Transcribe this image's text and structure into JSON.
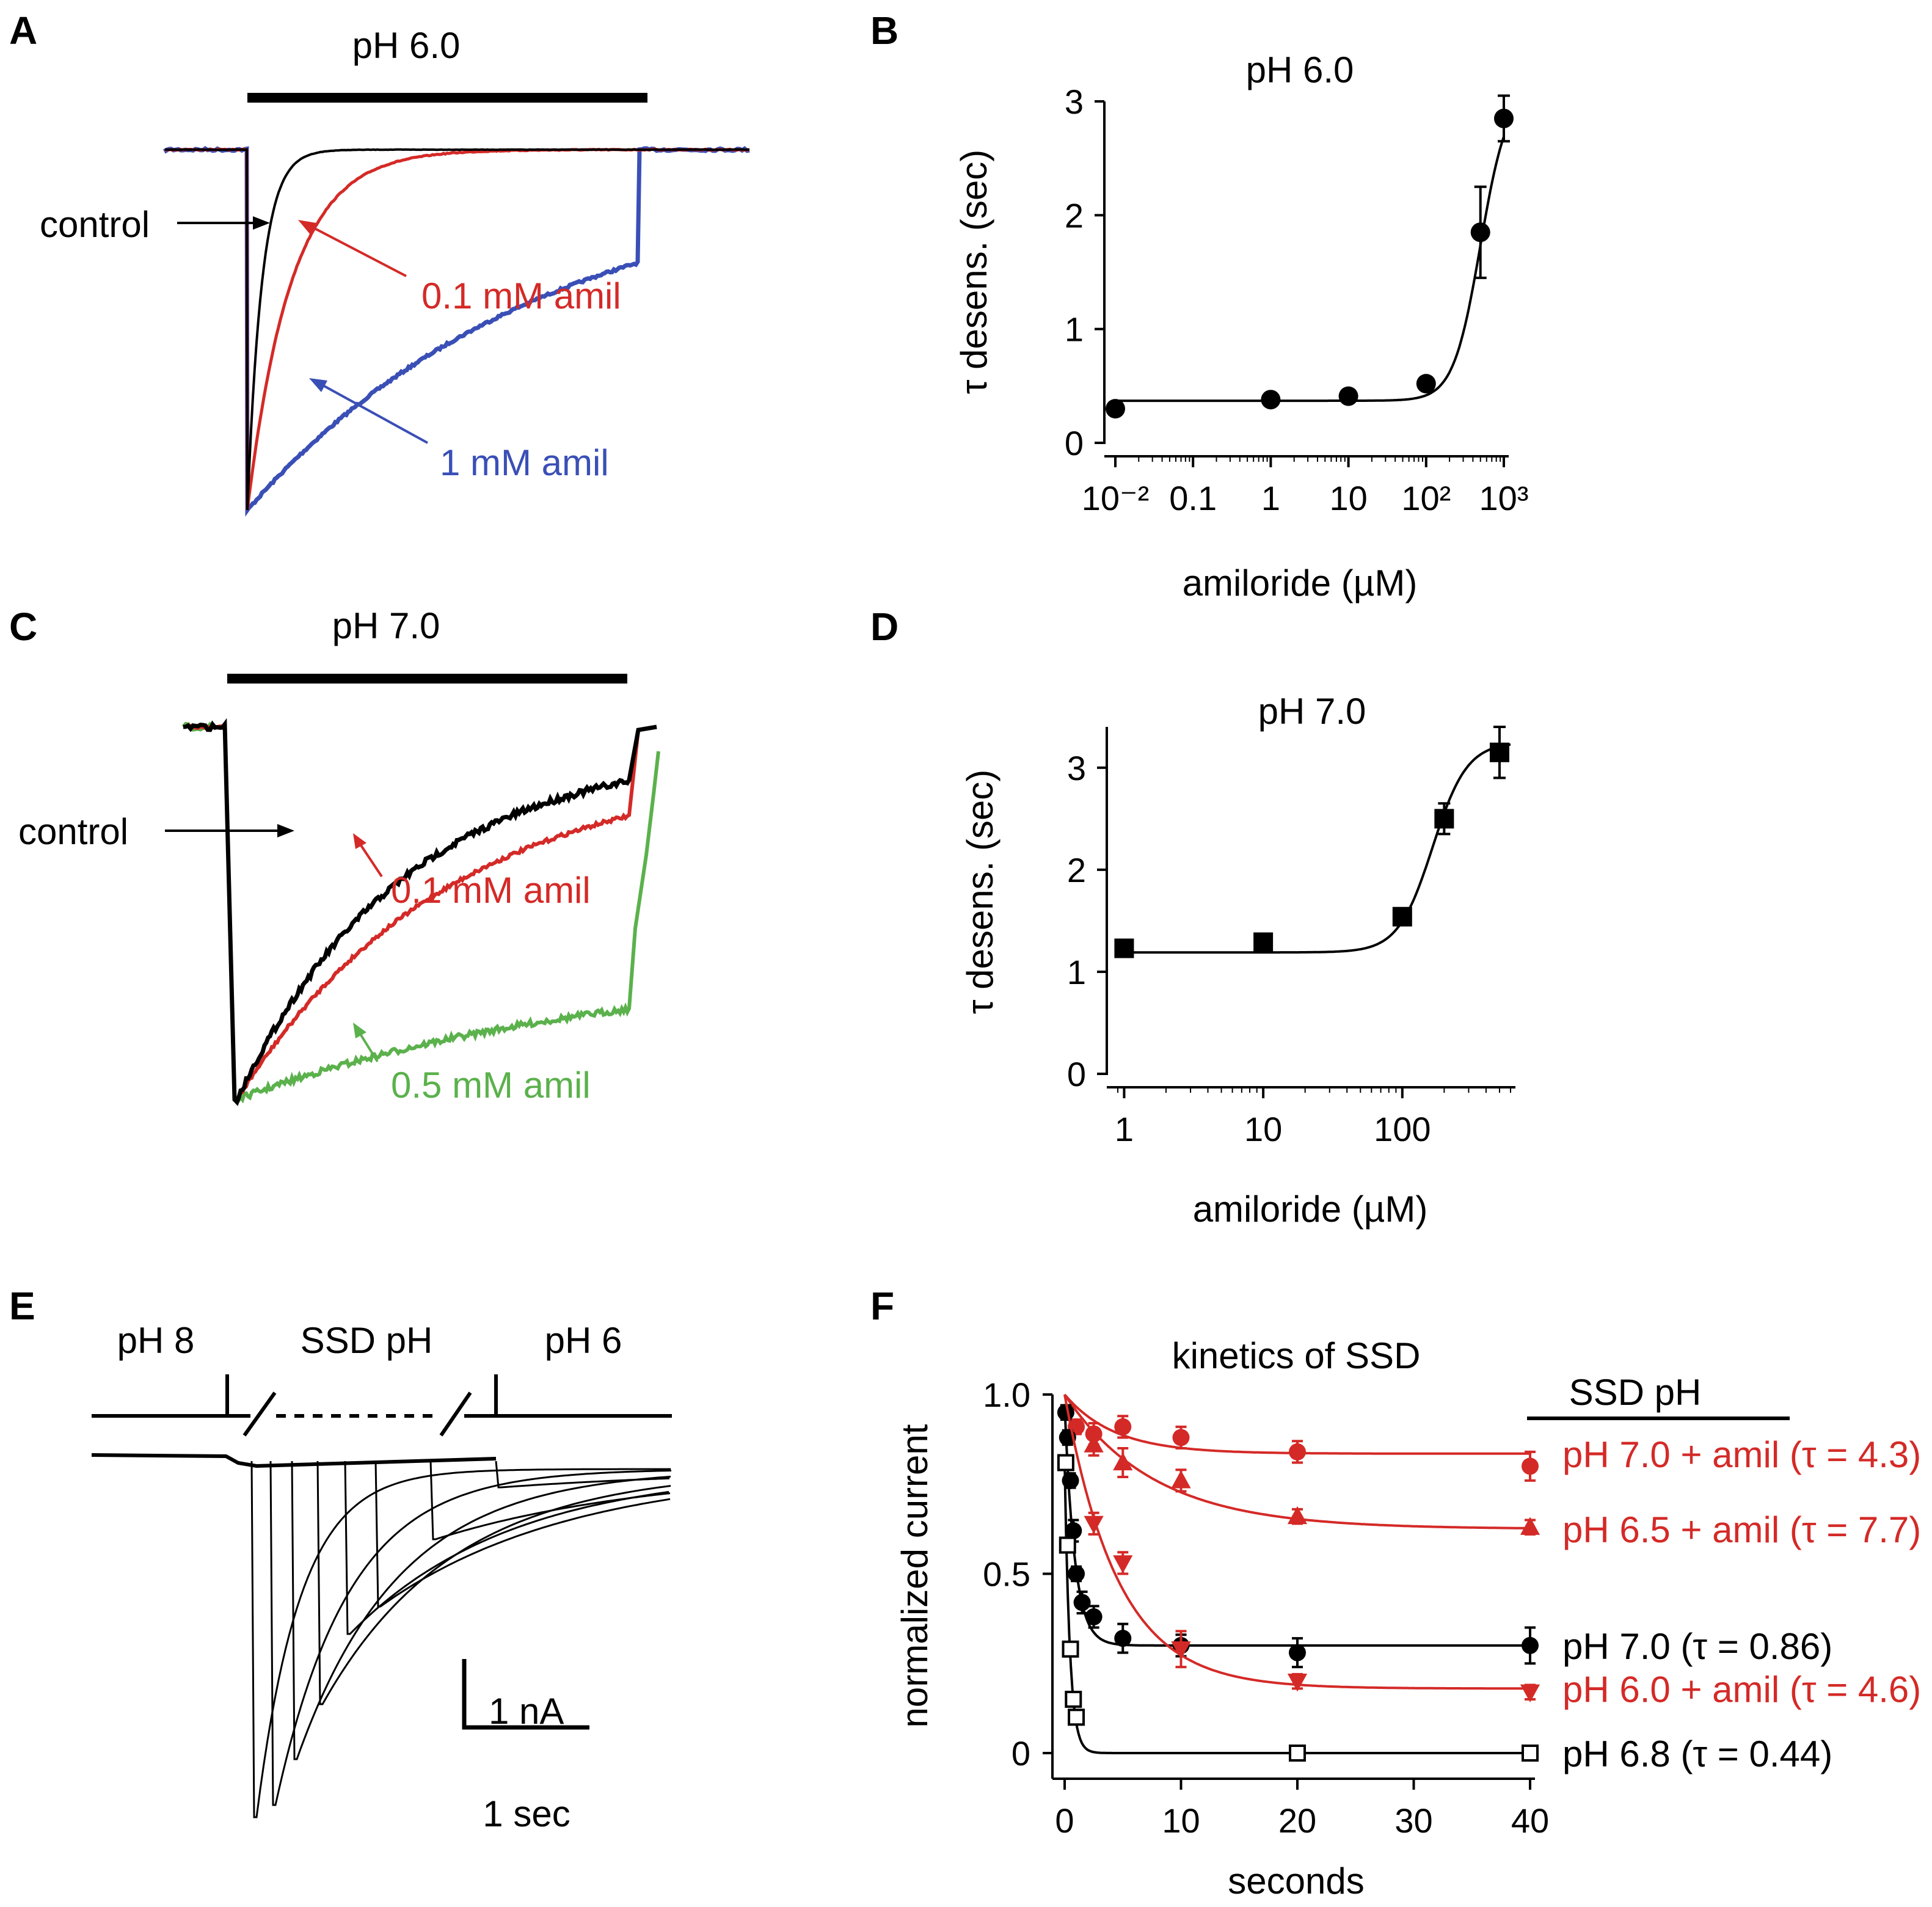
{
  "figure": {
    "colors": {
      "black": "#000000",
      "red": "#d42a27",
      "blue": "#3a4fb6",
      "green": "#5bb14c"
    }
  },
  "panelA": {
    "letter": "A",
    "bar_label": "pH 6.0",
    "labels": {
      "control": "control",
      "c1": "0.1 mM amil",
      "c2": "1 mM amil"
    },
    "traces": [
      {
        "name": "control",
        "color": "black",
        "tau_sec": 0.05
      },
      {
        "name": "0.1 mM amil",
        "color": "red",
        "tau_sec": 0.15
      },
      {
        "name": "1 mM amil",
        "color": "blue",
        "tau_sec": 1.0
      }
    ]
  },
  "panelC": {
    "letter": "C",
    "bar_label": "pH 7.0",
    "labels": {
      "control": "control",
      "c1": "0.1 mM amil",
      "c2": "0.5 mM amil"
    },
    "traces": [
      {
        "name": "control",
        "color": "black",
        "tau_sec": 1.2
      },
      {
        "name": "0.1 mM amil",
        "color": "red",
        "tau_sec": 1.5
      },
      {
        "name": "0.5 mM amil",
        "color": "green",
        "tau_sec": 2.6
      }
    ]
  },
  "panelE": {
    "letter": "E",
    "labels": {
      "pre": "pH 8",
      "mid": "SSD pH",
      "post": "pH 6"
    },
    "scalebar": {
      "y_label": "1 nA",
      "x_label": "1 sec"
    }
  },
  "chart_data": [
    {
      "id": "B",
      "type": "scatter",
      "title": "pH 6.0",
      "xlabel": "amiloride (µM)",
      "ylabel": "τ desens. (sec)",
      "xscale": "log",
      "xlim": [
        0.01,
        1000
      ],
      "ylim": [
        0,
        3
      ],
      "xticks": [
        0.01,
        0.1,
        1,
        10,
        100,
        1000
      ],
      "xtick_labels": [
        "10⁻²",
        "0.1",
        "1",
        "10",
        "10²",
        "10³"
      ],
      "yticks": [
        0,
        1,
        2,
        3
      ],
      "ytick_labels": [
        "0",
        "1",
        "2",
        "3"
      ],
      "marker": "circle",
      "x": [
        0.01,
        1,
        10,
        100,
        500,
        1000
      ],
      "y": [
        0.3,
        0.38,
        0.41,
        0.52,
        1.85,
        2.85
      ],
      "err": [
        0.02,
        0.02,
        0.02,
        0.03,
        0.4,
        0.2
      ],
      "fit": {
        "bottom": 0.37,
        "top": 3.1,
        "ec50": 500,
        "hill": 2.5
      }
    },
    {
      "id": "D",
      "type": "scatter",
      "title": "pH 7.0",
      "xlabel": "amiloride (µM)",
      "ylabel": "τ desens. (sec)",
      "xscale": "log",
      "xlim": [
        0.9,
        600
      ],
      "ylim": [
        0,
        3.4
      ],
      "xticks": [
        1,
        10,
        100
      ],
      "xtick_labels": [
        "1",
        "10",
        "100"
      ],
      "yticks": [
        0,
        1,
        2,
        3
      ],
      "ytick_labels": [
        "0",
        "1",
        "2",
        "3"
      ],
      "marker": "square",
      "x": [
        1,
        10,
        100,
        200,
        500
      ],
      "y": [
        1.23,
        1.29,
        1.54,
        2.5,
        3.15
      ],
      "err": [
        0.08,
        0.05,
        0.05,
        0.15,
        0.25
      ],
      "fit": {
        "bottom": 1.19,
        "top": 3.25,
        "ec50": 165,
        "hill": 3.5
      }
    },
    {
      "id": "F",
      "type": "scatter",
      "title": "kinetics of SSD",
      "xlabel": "seconds",
      "ylabel": "normalized current",
      "xlim": [
        0,
        40
      ],
      "ylim": [
        0,
        1.0
      ],
      "xticks": [
        0,
        10,
        20,
        30,
        40
      ],
      "xtick_labels": [
        "0",
        "10",
        "20",
        "30",
        "40"
      ],
      "yticks": [
        0,
        0.5,
        1.0
      ],
      "ytick_labels": [
        "0",
        "0.5",
        "1.0"
      ],
      "legend_title": "SSD pH",
      "series": [
        {
          "name": "pH 7.0 + amil (τ = 4.3)",
          "color": "red",
          "marker": "circle",
          "tau": 4.3,
          "plateau": 0.835,
          "x": [
            1,
            2.5,
            5,
            10,
            20,
            40
          ],
          "y": [
            0.91,
            0.89,
            0.91,
            0.88,
            0.84,
            0.8
          ],
          "err": [
            0.02,
            0.03,
            0.03,
            0.03,
            0.03,
            0.04
          ]
        },
        {
          "name": "pH 6.5 + amil (τ = 7.7)",
          "color": "red",
          "marker": "triangle-up",
          "tau": 7.7,
          "plateau": 0.625,
          "x": [
            2.5,
            5,
            10,
            20,
            40
          ],
          "y": [
            0.86,
            0.81,
            0.76,
            0.66,
            0.63
          ],
          "err": [
            0.03,
            0.04,
            0.03,
            0.02,
            0.02
          ]
        },
        {
          "name": "pH 7.0 (τ = 0.86)",
          "color": "black",
          "marker": "circle",
          "tau": 0.86,
          "plateau": 0.3,
          "x": [
            0.1,
            0.25,
            0.5,
            0.75,
            1,
            1.5,
            2.5,
            5,
            10,
            20,
            40
          ],
          "y": [
            0.95,
            0.88,
            0.76,
            0.62,
            0.5,
            0.42,
            0.38,
            0.32,
            0.3,
            0.28,
            0.3
          ],
          "err": [
            0.02,
            0.02,
            0.02,
            0.03,
            0.02,
            0.03,
            0.03,
            0.04,
            0.03,
            0.04,
            0.05
          ]
        },
        {
          "name": "pH 6.0 + amil (τ = 4.6)",
          "color": "red",
          "marker": "triangle-down",
          "tau": 4.6,
          "plateau": 0.18,
          "x": [
            2.5,
            5,
            10,
            20,
            40
          ],
          "y": [
            0.64,
            0.53,
            0.29,
            0.2,
            0.17
          ],
          "err": [
            0.03,
            0.03,
            0.05,
            0.02,
            0.02
          ]
        },
        {
          "name": "pH 6.8 (τ = 0.44)",
          "color": "black",
          "marker": "square-open",
          "tau": 0.44,
          "plateau": 0.0,
          "x": [
            0.1,
            0.25,
            0.5,
            0.75,
            1,
            20,
            40
          ],
          "y": [
            0.81,
            0.58,
            0.29,
            0.15,
            0.1,
            0.0,
            0.0
          ],
          "err": [
            0,
            0,
            0,
            0,
            0,
            0,
            0
          ]
        }
      ]
    }
  ]
}
